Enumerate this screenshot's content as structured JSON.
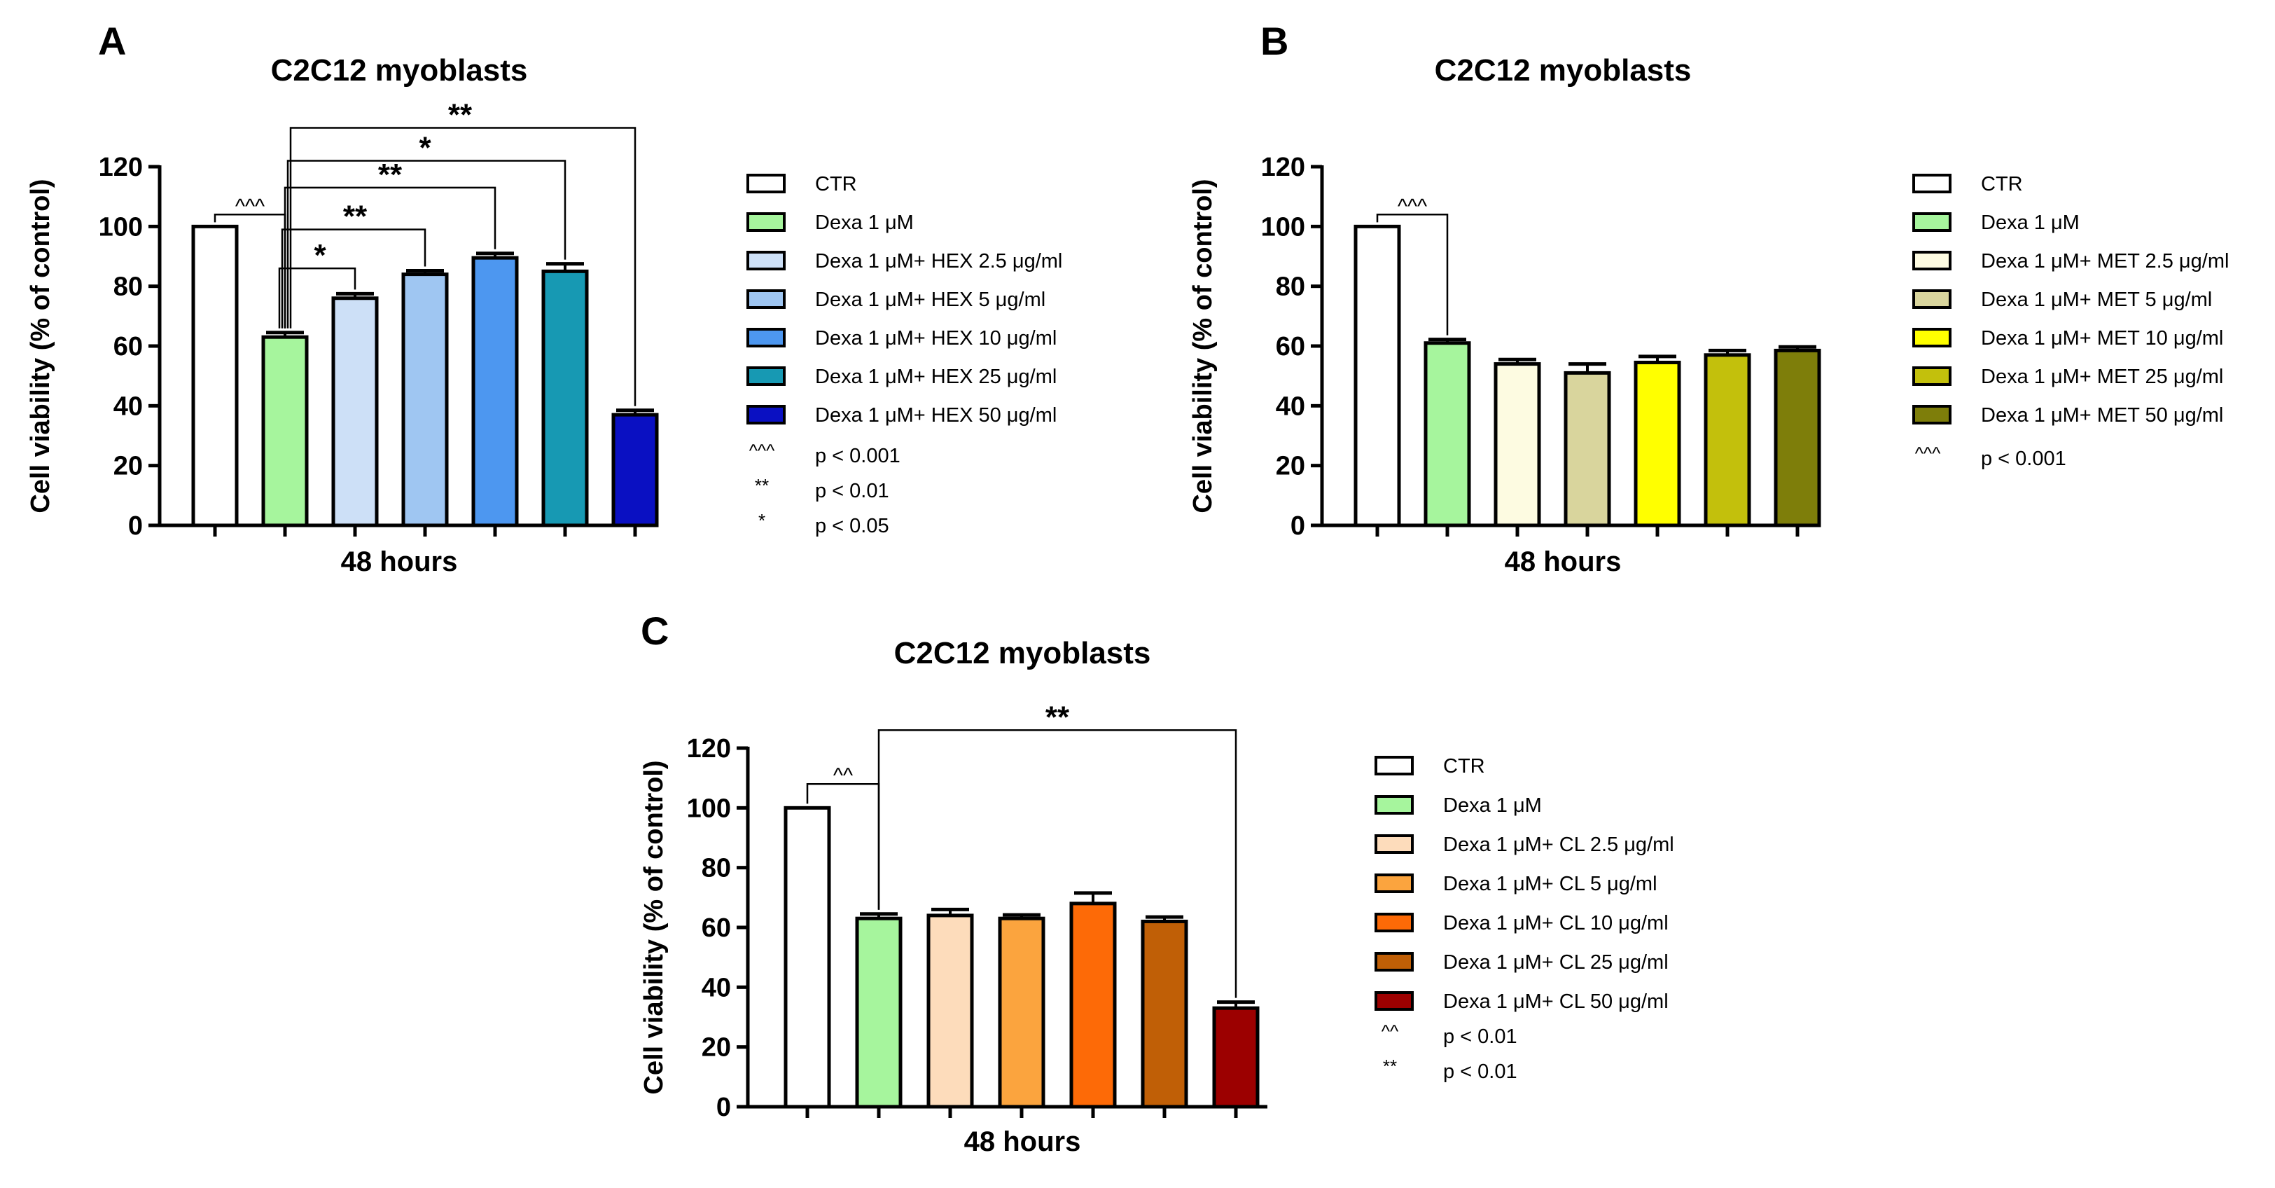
{
  "chart_data": [
    {
      "panel": "A",
      "type": "bar",
      "title": "C2C12 myoblasts",
      "xlabel": "48 hours",
      "ylabel": "Cell viability (% of control)",
      "ylim": [
        0,
        120
      ],
      "yticks": [
        "0",
        "20",
        "40",
        "60",
        "80",
        "100",
        "120"
      ],
      "bars": [
        {
          "name": "CTR",
          "value": 100,
          "error": 0,
          "color": "#ffffff"
        },
        {
          "name": "Dexa 1 μM",
          "value": 63,
          "error": 1.5,
          "color": "#a6f59d"
        },
        {
          "name": "Dexa 1 μM+ HEX 2.5 μg/ml",
          "value": 76,
          "error": 1.5,
          "color": "#cde0f7"
        },
        {
          "name": "Dexa 1 μM+ HEX    5 μg/ml",
          "value": 84,
          "error": 1.2,
          "color": "#9fc6f2"
        },
        {
          "name": "Dexa 1 μM+ HEX  10 μg/ml",
          "value": 89.5,
          "error": 1.5,
          "color": "#4d97f0"
        },
        {
          "name": "Dexa 1 μM+ HEX  25 μg/ml",
          "value": 85,
          "error": 2.5,
          "color": "#1799b3"
        },
        {
          "name": "Dexa 1 μM+ HEX  50 μg/ml",
          "value": 37,
          "error": 1.5,
          "color": "#0a10c2"
        }
      ],
      "comparisons": [
        {
          "from": 0,
          "to": 1,
          "label": "^^^",
          "level": 104
        },
        {
          "from": 1,
          "to": 2,
          "label": "*",
          "level": 86
        },
        {
          "from": 1,
          "to": 3,
          "label": "**",
          "level": 99
        },
        {
          "from": 1,
          "to": 4,
          "label": "**",
          "level": 113
        },
        {
          "from": 1,
          "to": 5,
          "label": "*",
          "level": 122
        },
        {
          "from": 1,
          "to": 6,
          "label": "**",
          "level": 133
        }
      ],
      "significance": [
        {
          "symbol": "^^^",
          "text": "p < 0.001"
        },
        {
          "symbol": "**",
          "text": "p < 0.01"
        },
        {
          "symbol": "*",
          "text": "p < 0.05"
        }
      ]
    },
    {
      "panel": "B",
      "type": "bar",
      "title": "C2C12 myoblasts",
      "xlabel": "48 hours",
      "ylabel": "Cell viability (% of control)",
      "ylim": [
        0,
        120
      ],
      "yticks": [
        "0",
        "20",
        "40",
        "60",
        "80",
        "100",
        "120"
      ],
      "bars": [
        {
          "name": "CTR",
          "value": 100,
          "error": 0,
          "color": "#ffffff"
        },
        {
          "name": "Dexa 1 μM",
          "value": 61,
          "error": 1.2,
          "color": "#a6f59d"
        },
        {
          "name": "Dexa 1 μM+ MET 2.5 μg/ml",
          "value": 54,
          "error": 1.5,
          "color": "#fdfbe1"
        },
        {
          "name": "Dexa 1 μM+ MET    5 μg/ml",
          "value": 51,
          "error": 3,
          "color": "#d9d59d"
        },
        {
          "name": "Dexa 1 μM+ MET  10 μg/ml",
          "value": 54.5,
          "error": 2,
          "color": "#ffff00"
        },
        {
          "name": "Dexa 1 μM+ MET  25 μg/ml",
          "value": 57,
          "error": 1.5,
          "color": "#c3c00c"
        },
        {
          "name": "Dexa 1 μM+ MET  50 μg/ml",
          "value": 58.5,
          "error": 1.2,
          "color": "#7e7e0a"
        }
      ],
      "comparisons": [
        {
          "from": 0,
          "to": 1,
          "label": "^^^",
          "level": 104
        }
      ],
      "significance": [
        {
          "symbol": "^^^",
          "text": "p < 0.001"
        }
      ]
    },
    {
      "panel": "C",
      "type": "bar",
      "title": "C2C12 myoblasts",
      "xlabel": "48 hours",
      "ylabel": "Cell viability (% of control)",
      "ylim": [
        0,
        120
      ],
      "yticks": [
        "0",
        "20",
        "40",
        "60",
        "80",
        "100",
        "120"
      ],
      "bars": [
        {
          "name": "CTR",
          "value": 100,
          "error": 0,
          "color": "#ffffff"
        },
        {
          "name": "Dexa 1 μM",
          "value": 63,
          "error": 1.5,
          "color": "#a6f59d"
        },
        {
          "name": "Dexa 1 μM+ CL 2.5 μg/ml",
          "value": 64,
          "error": 2,
          "color": "#fddcbb"
        },
        {
          "name": "Dexa 1 μM+ CL    5 μg/ml",
          "value": 63,
          "error": 1.2,
          "color": "#fba43e"
        },
        {
          "name": "Dexa 1 μM+ CL  10 μg/ml",
          "value": 68,
          "error": 3.5,
          "color": "#fd6a07"
        },
        {
          "name": "Dexa 1 μM+ CL  25 μg/ml",
          "value": 62,
          "error": 1.5,
          "color": "#c05f06"
        },
        {
          "name": "Dexa 1 μM+ CL  50 μg/ml",
          "value": 33,
          "error": 2,
          "color": "#9c0000"
        }
      ],
      "comparisons": [
        {
          "from": 0,
          "to": 1,
          "label": "^^",
          "level": 108
        },
        {
          "from": 1,
          "to": 6,
          "label": "**",
          "level": 126
        }
      ],
      "significance": [
        {
          "symbol": "^^",
          "text": "p < 0.01"
        },
        {
          "symbol": "**",
          "text": "p < 0.01"
        }
      ]
    }
  ]
}
